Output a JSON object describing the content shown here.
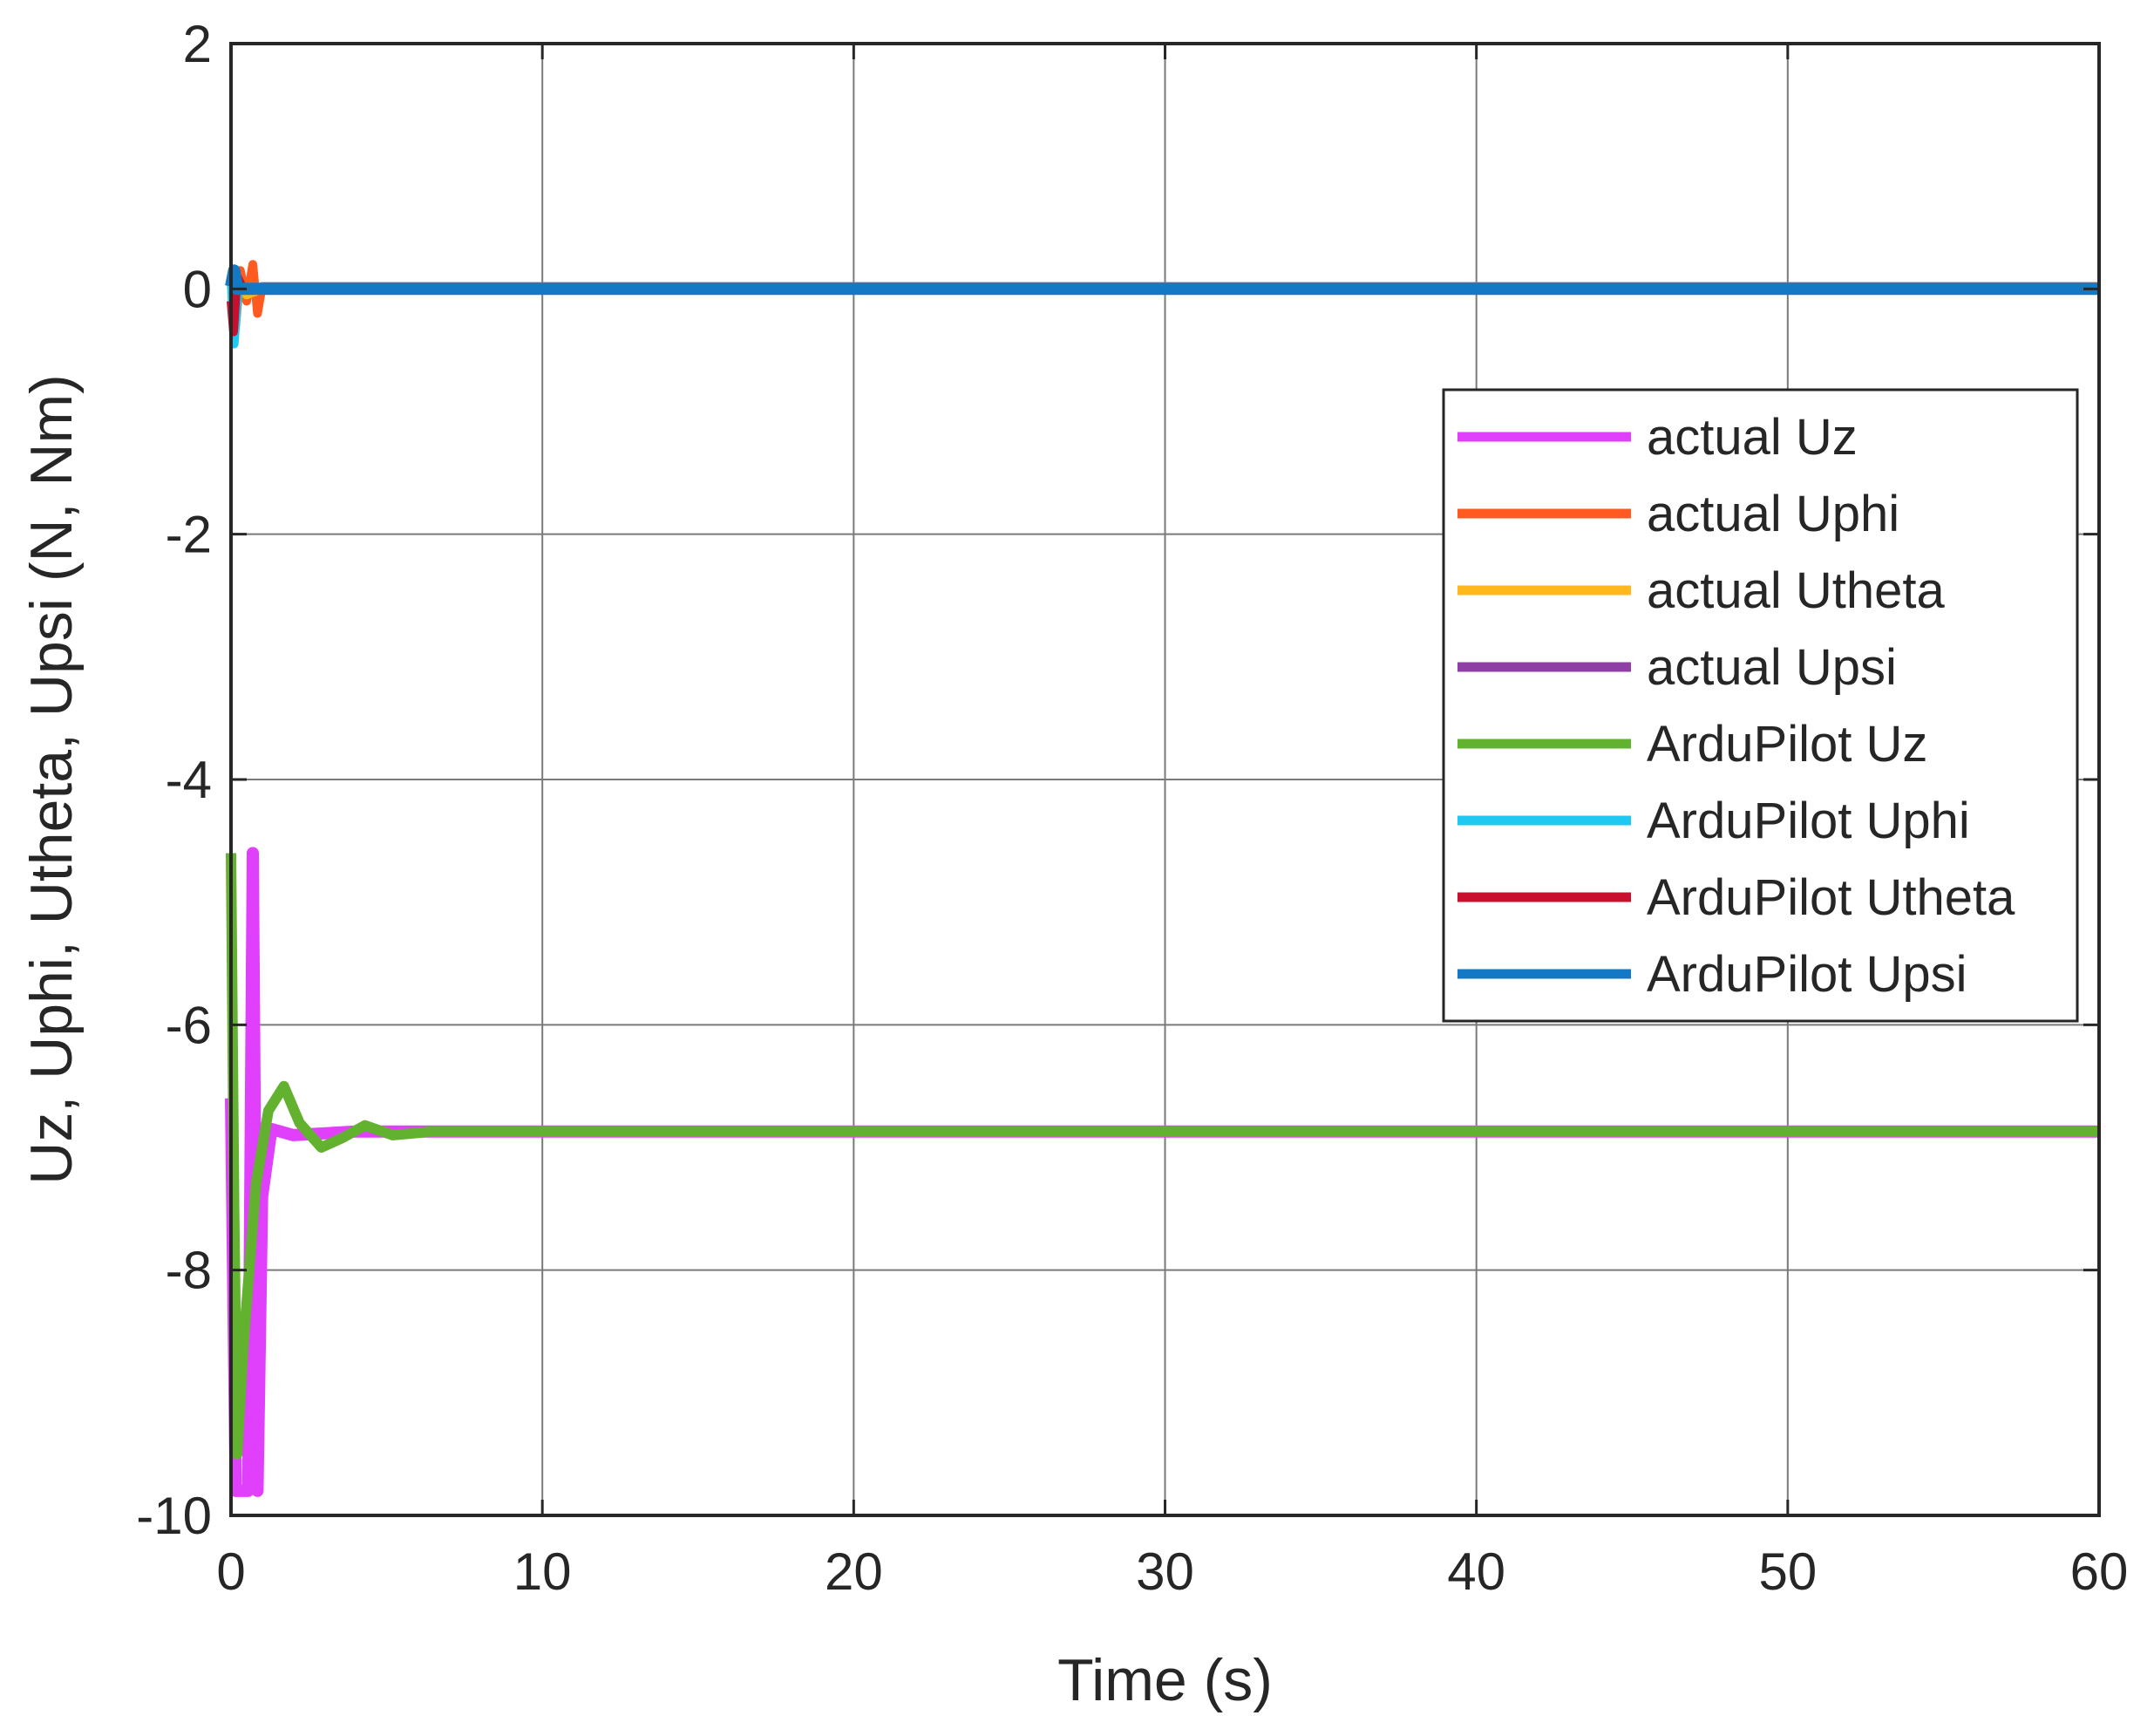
{
  "chart_data": {
    "type": "line",
    "xlabel": "Time (s)",
    "ylabel": "Uz, Uphi, Utheta, Upsi (N, Nm)",
    "xlim": [
      0,
      60
    ],
    "ylim": [
      -10,
      2
    ],
    "xticks": [
      0,
      10,
      20,
      30,
      40,
      50,
      60
    ],
    "yticks": [
      2,
      0,
      -2,
      -4,
      -6,
      -8,
      -10
    ],
    "grid": true,
    "legend_position": "right, middle",
    "series": [
      {
        "name": "actual Uz",
        "color": "#e040fb",
        "width": 14,
        "points": [
          [
            0,
            -6.6
          ],
          [
            0.15,
            -9.8
          ],
          [
            0.4,
            -9.8
          ],
          [
            0.55,
            -9.8
          ],
          [
            0.7,
            -4.6
          ],
          [
            0.85,
            -9.8
          ],
          [
            1.0,
            -7.4
          ],
          [
            1.3,
            -6.85
          ],
          [
            2.0,
            -6.9
          ],
          [
            4.0,
            -6.87
          ],
          [
            60,
            -6.87
          ]
        ]
      },
      {
        "name": "actual Uphi",
        "color": "#ff5a1f",
        "width": 10,
        "points": [
          [
            0,
            0.05
          ],
          [
            0.15,
            -0.3
          ],
          [
            0.3,
            0.15
          ],
          [
            0.5,
            -0.1
          ],
          [
            0.7,
            0.2
          ],
          [
            0.85,
            -0.2
          ],
          [
            1.0,
            0.02
          ],
          [
            60,
            0.02
          ]
        ]
      },
      {
        "name": "actual Utheta",
        "color": "#ffb81c",
        "width": 10,
        "points": [
          [
            0,
            0.0
          ],
          [
            0.2,
            0.08
          ],
          [
            0.5,
            -0.05
          ],
          [
            1.0,
            0.0
          ],
          [
            60,
            0.0
          ]
        ]
      },
      {
        "name": "actual Upsi",
        "color": "#8e3fa3",
        "width": 10,
        "points": [
          [
            0,
            0.0
          ],
          [
            60,
            0.0
          ]
        ]
      },
      {
        "name": "ArduPilot Uz",
        "color": "#62b22f",
        "width": 12,
        "points": [
          [
            0,
            -4.6
          ],
          [
            0.1,
            -7.5
          ],
          [
            0.2,
            -9.5
          ],
          [
            0.4,
            -8.6
          ],
          [
            0.8,
            -7.3
          ],
          [
            1.2,
            -6.7
          ],
          [
            1.7,
            -6.5
          ],
          [
            2.2,
            -6.8
          ],
          [
            2.9,
            -7.0
          ],
          [
            3.6,
            -6.92
          ],
          [
            4.3,
            -6.82
          ],
          [
            5.2,
            -6.9
          ],
          [
            6.5,
            -6.87
          ],
          [
            60,
            -6.87
          ]
        ]
      },
      {
        "name": "ArduPilot Uphi",
        "color": "#1ec8f0",
        "width": 10,
        "points": [
          [
            0,
            0.1
          ],
          [
            0.1,
            -0.45
          ],
          [
            0.25,
            0.05
          ],
          [
            0.5,
            0.0
          ],
          [
            60,
            0.0
          ]
        ]
      },
      {
        "name": "ArduPilot Utheta",
        "color": "#c8102e",
        "width": 10,
        "points": [
          [
            0,
            -0.1
          ],
          [
            0.08,
            -0.35
          ],
          [
            0.2,
            0.1
          ],
          [
            0.4,
            0.0
          ],
          [
            60,
            0.0
          ]
        ]
      },
      {
        "name": "ArduPilot Upsi",
        "color": "#1479c4",
        "width": 14,
        "points": [
          [
            0,
            0.02
          ],
          [
            0.1,
            0.15
          ],
          [
            0.2,
            0.0
          ],
          [
            60,
            0.0
          ]
        ]
      }
    ]
  }
}
